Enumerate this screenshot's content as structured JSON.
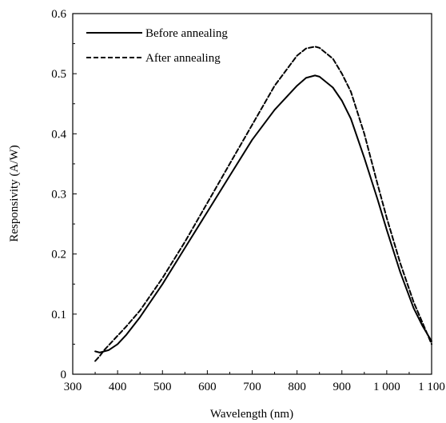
{
  "chart_data": {
    "type": "line",
    "xlabel": "Wavelength (nm)",
    "ylabel": "Responsivity (A/W)",
    "xlim": [
      300,
      1100
    ],
    "ylim": [
      0,
      0.6
    ],
    "x_ticks": [
      300,
      400,
      500,
      600,
      700,
      800,
      900,
      1000,
      1100
    ],
    "x_tick_labels": [
      "300",
      "400",
      "500",
      "600",
      "700",
      "800",
      "900",
      "1 000",
      "1 100"
    ],
    "y_ticks": [
      0,
      0.1,
      0.2,
      0.3,
      0.4,
      0.5,
      0.6
    ],
    "y_tick_labels": [
      "0",
      "0.1",
      "0.2",
      "0.3",
      "0.4",
      "0.5",
      "0.6"
    ],
    "grid": false,
    "legend": "top-left",
    "series": [
      {
        "name": "Before annealing",
        "style": "solid",
        "color": "#000000",
        "x": [
          350,
          360,
          370,
          380,
          390,
          400,
          420,
          450,
          500,
          550,
          600,
          650,
          700,
          750,
          800,
          820,
          840,
          850,
          880,
          900,
          920,
          950,
          980,
          1000,
          1030,
          1060,
          1080,
          1100
        ],
        "y": [
          0.038,
          0.036,
          0.038,
          0.04,
          0.045,
          0.05,
          0.066,
          0.095,
          0.15,
          0.21,
          0.27,
          0.33,
          0.39,
          0.44,
          0.48,
          0.493,
          0.497,
          0.495,
          0.477,
          0.455,
          0.425,
          0.36,
          0.29,
          0.24,
          0.17,
          0.11,
          0.08,
          0.055
        ]
      },
      {
        "name": "After annealing",
        "style": "dashed",
        "color": "#000000",
        "x": [
          350,
          360,
          370,
          380,
          390,
          400,
          420,
          450,
          500,
          550,
          600,
          650,
          700,
          750,
          800,
          820,
          840,
          850,
          880,
          900,
          920,
          950,
          980,
          1000,
          1030,
          1060,
          1080,
          1100
        ],
        "y": [
          0.022,
          0.03,
          0.04,
          0.048,
          0.056,
          0.064,
          0.08,
          0.106,
          0.16,
          0.22,
          0.285,
          0.35,
          0.415,
          0.48,
          0.53,
          0.542,
          0.545,
          0.543,
          0.525,
          0.5,
          0.47,
          0.4,
          0.315,
          0.26,
          0.185,
          0.12,
          0.085,
          0.05
        ]
      }
    ]
  }
}
